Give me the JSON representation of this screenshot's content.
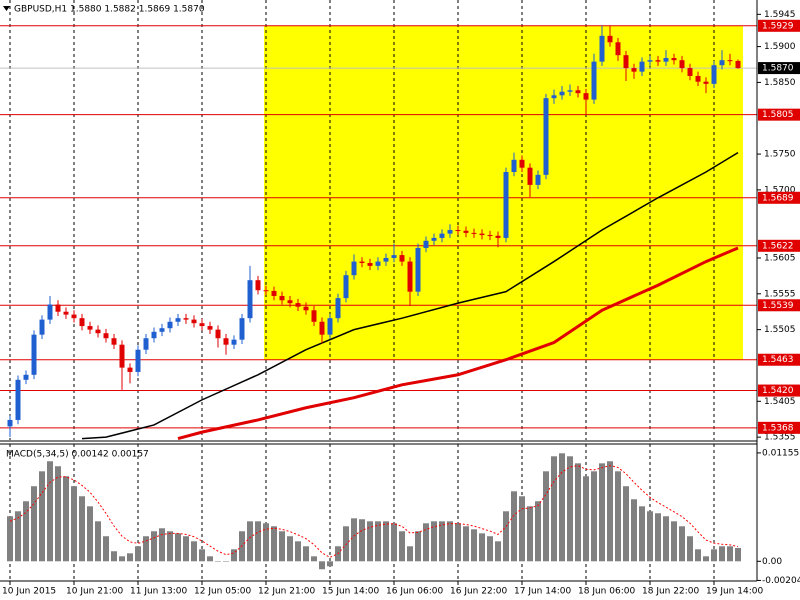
{
  "chart_data": [
    {
      "type": "candlestick",
      "title": "GBPUSD,H1  1.5880 1.5882 1.5869 1.5870",
      "ylim": [
        1.5351,
        1.5965
      ],
      "yticks": [
        {
          "value": 1.5945,
          "label": "1.5945"
        },
        {
          "value": 1.59,
          "label": "1.5900"
        },
        {
          "value": 1.585,
          "label": "1.5850"
        },
        {
          "value": 1.575,
          "label": "1.5750"
        },
        {
          "value": 1.57,
          "label": "1.5700"
        },
        {
          "value": 1.5605,
          "label": "1.5605"
        },
        {
          "value": 1.5555,
          "label": "1.5555"
        },
        {
          "value": 1.5505,
          "label": "1.5505"
        },
        {
          "value": 1.5405,
          "label": "1.5405"
        },
        {
          "value": 1.5355,
          "label": "1.5355"
        }
      ],
      "xticks": [
        {
          "value": 0,
          "label": "10 Jun 2015"
        },
        {
          "value": 8,
          "label": "10 Jun 21:00"
        },
        {
          "value": 16,
          "label": "11 Jun 13:00"
        },
        {
          "value": 24,
          "label": "12 Jun 05:00"
        },
        {
          "value": 32,
          "label": "12 Jun 21:00"
        },
        {
          "value": 40,
          "label": "15 Jun 14:00"
        },
        {
          "value": 48,
          "label": "16 Jun 06:00"
        },
        {
          "value": 56,
          "label": "16 Jun 22:00"
        },
        {
          "value": 64,
          "label": "17 Jun 14:00"
        },
        {
          "value": 72,
          "label": "18 Jun 06:00"
        },
        {
          "value": 80,
          "label": "18 Jun 22:00"
        },
        {
          "value": 88,
          "label": "19 Jun 14:00"
        }
      ],
      "grid": true,
      "bull_color": "#1f5fd0",
      "bear_color": "#e00000",
      "rectangle": {
        "top": 1.5929,
        "bottom": 1.5463,
        "color": "#ffff00"
      },
      "levels": [
        {
          "value": 1.5929,
          "label": "1.5929"
        },
        {
          "value": 1.5805,
          "label": "1.5805"
        },
        {
          "value": 1.5689,
          "label": "1.5689"
        },
        {
          "value": 1.5622,
          "label": "1.5622"
        },
        {
          "value": 1.5539,
          "label": "1.5539"
        },
        {
          "value": 1.5463,
          "label": "1.5463"
        },
        {
          "value": 1.542,
          "label": "1.5420"
        },
        {
          "value": 1.5368,
          "label": "1.5368"
        }
      ],
      "level_color": "#e00000",
      "current_price": {
        "value": 1.587,
        "label": "1.5870"
      },
      "open": [
        1.537,
        1.5379,
        1.5435,
        1.5442,
        1.5498,
        1.5519,
        1.554,
        1.553,
        1.5526,
        1.5521,
        1.551,
        1.5505,
        1.55,
        1.5493,
        1.5484,
        1.5452,
        1.5446,
        1.5477,
        1.5493,
        1.5502,
        1.5507,
        1.5516,
        1.5521,
        1.5519,
        1.5514,
        1.551,
        1.5505,
        1.5493,
        1.5484,
        1.5491,
        1.5521,
        1.5574,
        1.556,
        1.5559,
        1.5552,
        1.5546,
        1.5542,
        1.5537,
        1.5532,
        1.5516,
        1.5498,
        1.5521,
        1.5549,
        1.5581,
        1.56,
        1.5598,
        1.5594,
        1.56,
        1.5605,
        1.5609,
        1.56,
        1.5558,
        1.5619,
        1.5629,
        1.5633,
        1.5639,
        1.5644,
        1.5643,
        1.564,
        1.5639,
        1.5637,
        1.5636,
        1.5633,
        1.5725,
        1.5742,
        1.5731,
        1.5707,
        1.5721,
        1.5828,
        1.5832,
        1.5837,
        1.5839,
        1.5835,
        1.5826,
        1.5879,
        1.5915,
        1.5906,
        1.5888,
        1.587,
        1.5865,
        1.5879,
        1.5881,
        1.5879,
        1.5884,
        1.5881,
        1.587,
        1.5859,
        1.5851,
        1.5848,
        1.5874,
        1.5881,
        1.588
      ],
      "high": [
        1.5385,
        1.5441,
        1.5448,
        1.5504,
        1.5525,
        1.5552,
        1.5546,
        1.5536,
        1.5532,
        1.5527,
        1.5516,
        1.5511,
        1.5506,
        1.5499,
        1.549,
        1.5458,
        1.5483,
        1.5499,
        1.5508,
        1.5513,
        1.5522,
        1.5527,
        1.5527,
        1.5525,
        1.552,
        1.5516,
        1.5511,
        1.5499,
        1.5497,
        1.5527,
        1.5594,
        1.558,
        1.5566,
        1.5565,
        1.5558,
        1.5552,
        1.5548,
        1.5543,
        1.5538,
        1.5522,
        1.5527,
        1.5555,
        1.5587,
        1.561,
        1.5606,
        1.5604,
        1.5606,
        1.5611,
        1.5625,
        1.5615,
        1.5606,
        1.5625,
        1.5635,
        1.5639,
        1.5645,
        1.5652,
        1.565,
        1.5649,
        1.5646,
        1.5645,
        1.5643,
        1.5642,
        1.5731,
        1.5752,
        1.5748,
        1.5737,
        1.5727,
        1.5834,
        1.584,
        1.5845,
        1.5847,
        1.5845,
        1.5841,
        1.589,
        1.5929,
        1.5929,
        1.5912,
        1.5894,
        1.5876,
        1.5885,
        1.5887,
        1.5887,
        1.5895,
        1.589,
        1.5887,
        1.5876,
        1.5865,
        1.5857,
        1.588,
        1.5895,
        1.589,
        1.5882
      ],
      "low": [
        1.5355,
        1.5373,
        1.5429,
        1.5436,
        1.5492,
        1.5513,
        1.5524,
        1.552,
        1.5515,
        1.5504,
        1.5499,
        1.5494,
        1.5487,
        1.5478,
        1.5421,
        1.543,
        1.544,
        1.5471,
        1.5487,
        1.5496,
        1.5501,
        1.551,
        1.5513,
        1.5508,
        1.5504,
        1.5499,
        1.548,
        1.547,
        1.5478,
        1.5485,
        1.5515,
        1.5554,
        1.5553,
        1.5546,
        1.554,
        1.5536,
        1.5531,
        1.5526,
        1.551,
        1.5486,
        1.5492,
        1.5515,
        1.5543,
        1.5575,
        1.5592,
        1.5588,
        1.5588,
        1.5594,
        1.5599,
        1.5594,
        1.5538,
        1.5552,
        1.5613,
        1.5623,
        1.5627,
        1.5633,
        1.5637,
        1.5634,
        1.5633,
        1.5631,
        1.563,
        1.562,
        1.5627,
        1.5719,
        1.5725,
        1.569,
        1.5701,
        1.5715,
        1.582,
        1.5826,
        1.5831,
        1.5829,
        1.5805,
        1.582,
        1.5873,
        1.59,
        1.588,
        1.5852,
        1.5855,
        1.5859,
        1.5873,
        1.5873,
        1.5873,
        1.5875,
        1.5864,
        1.5853,
        1.5845,
        1.5835,
        1.5842,
        1.5868,
        1.5874,
        1.5869
      ],
      "close": [
        1.5379,
        1.5435,
        1.5442,
        1.5498,
        1.5519,
        1.554,
        1.553,
        1.5526,
        1.5521,
        1.551,
        1.5505,
        1.55,
        1.5493,
        1.5484,
        1.5452,
        1.5446,
        1.5477,
        1.5493,
        1.5502,
        1.5507,
        1.5516,
        1.5521,
        1.5519,
        1.5514,
        1.551,
        1.5505,
        1.5493,
        1.5484,
        1.5491,
        1.5521,
        1.5574,
        1.556,
        1.5559,
        1.5552,
        1.5546,
        1.5542,
        1.5537,
        1.5532,
        1.5516,
        1.5498,
        1.5521,
        1.5549,
        1.5581,
        1.56,
        1.5598,
        1.5594,
        1.56,
        1.5605,
        1.5609,
        1.56,
        1.5558,
        1.5619,
        1.5629,
        1.5633,
        1.5639,
        1.5644,
        1.5643,
        1.564,
        1.5639,
        1.5637,
        1.5636,
        1.5633,
        1.5725,
        1.5742,
        1.5731,
        1.5707,
        1.5721,
        1.5828,
        1.5832,
        1.5837,
        1.5839,
        1.5835,
        1.5826,
        1.5879,
        1.5915,
        1.5906,
        1.5888,
        1.587,
        1.5865,
        1.5879,
        1.5881,
        1.5879,
        1.5884,
        1.5881,
        1.587,
        1.5859,
        1.5851,
        1.5848,
        1.5874,
        1.5881,
        1.588,
        1.587
      ],
      "ma": [
        {
          "color": "#000000",
          "x": [
            9,
            12,
            18,
            24,
            31,
            37,
            43,
            49,
            56,
            62,
            68,
            74,
            81,
            87,
            91
          ],
          "values": [
            1.5353,
            1.5355,
            1.5372,
            1.5407,
            1.5442,
            1.5477,
            1.5505,
            1.5521,
            1.5542,
            1.5558,
            1.56,
            1.5644,
            1.5689,
            1.5725,
            1.5752
          ]
        },
        {
          "color": "#e00000",
          "x": [
            21,
            24,
            31,
            37,
            43,
            49,
            56,
            62,
            68,
            74,
            81,
            87,
            91
          ],
          "values": [
            1.5353,
            1.5362,
            1.5379,
            1.5396,
            1.541,
            1.5428,
            1.5442,
            1.5463,
            1.5487,
            1.5532,
            1.5567,
            1.56,
            1.5619
          ]
        }
      ]
    },
    {
      "type": "macd",
      "title": "MACD(5,34,5) 0.00142 0.00157",
      "ylim": [
        -0.0021,
        0.0125
      ],
      "yticks": [
        0.01155,
        {
          "value": 0,
          "label": "0.00"
        },
        -0.00204
      ],
      "series": [
        {
          "type": "bar",
          "color": "#808080",
          "values": [
            0.0048,
            0.00533,
            0.0064,
            0.008,
            0.00959,
            0.01066,
            0.01013,
            0.00906,
            0.008,
            0.00693,
            0.00586,
            0.00426,
            0.00267,
            0.00107,
            0.00053,
            0.00085,
            0.0016,
            0.00267,
            0.0032,
            0.00352,
            0.0032,
            0.00298,
            0.00267,
            0.00213,
            0.00128,
            0.00053,
            0.0,
            -5e-05,
            0.00128,
            0.0032,
            0.00426,
            0.00426,
            0.00405,
            0.00373,
            0.0032,
            0.00267,
            0.00213,
            0.0016,
            0.00053,
            -0.00085,
            -0.00053,
            0.0016,
            0.00373,
            0.00458,
            0.00448,
            0.00426,
            0.00426,
            0.00426,
            0.00405,
            0.0032,
            0.0016,
            0.0032,
            0.00405,
            0.00426,
            0.00426,
            0.00426,
            0.00405,
            0.00373,
            0.00341,
            0.00298,
            0.00267,
            0.00213,
            0.00533,
            0.00746,
            0.00693,
            0.00586,
            0.0064,
            0.00959,
            0.01119,
            0.01151,
            0.01119,
            0.01044,
            0.00906,
            0.00959,
            0.01044,
            0.01066,
            0.00959,
            0.008,
            0.00661,
            0.00586,
            0.00533,
            0.00512,
            0.0048,
            0.00426,
            0.00373,
            0.00267,
            0.00128,
            0.00053,
            0.00128,
            0.0016,
            0.0016,
            0.00142
          ]
        },
        {
          "type": "line",
          "color": "#ff0000",
          "values": [
            0.00427,
            0.00462,
            0.00521,
            0.00614,
            0.00729,
            0.00841,
            0.00898,
            0.00901,
            0.00867,
            0.00809,
            0.00735,
            0.00632,
            0.0051,
            0.00376,
            0.00268,
            0.00207,
            0.00191,
            0.00216,
            0.00251,
            0.00285,
            0.00297,
            0.00297,
            0.00287,
            0.00262,
            0.00217,
            0.00162,
            0.00108,
            0.0007,
            0.00089,
            0.00166,
            0.00253,
            0.00311,
            0.00342,
            0.00352,
            0.00341,
            0.00316,
            0.00282,
            0.00241,
            0.00178,
            0.0009,
            0.00042,
            0.00081,
            0.00178,
            0.00271,
            0.0033,
            0.00362,
            0.00383,
            0.00397,
            0.004,
            0.00373,
            0.00302,
            0.00308,
            0.0034,
            0.00369,
            0.00388,
            0.00401,
            0.00402,
            0.00392,
            0.00375,
            0.00349,
            0.00322,
            0.00286,
            0.00368,
            0.00494,
            0.0056,
            0.00569,
            0.00593,
            0.00715,
            0.0085,
            0.0095,
            0.01006,
            0.01019,
            0.00981,
            0.00974,
            0.00997,
            0.0102,
            0.01,
            0.00933,
            0.00842,
            0.00757,
            0.00682,
            0.00625,
            0.00577,
            0.00527,
            0.00476,
            0.00406,
            0.00313,
            0.00226,
            0.00193,
            0.00182,
            0.00175,
            0.00157
          ]
        }
      ]
    }
  ]
}
